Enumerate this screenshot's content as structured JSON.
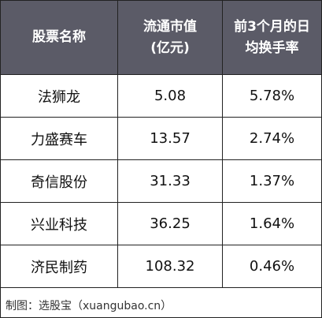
{
  "table": {
    "header": [
      [
        "股票名称"
      ],
      [
        "流通市值",
        "(亿元)"
      ],
      [
        "前3个月的日",
        "均换手率"
      ]
    ],
    "rows": [
      [
        "法狮龙",
        "5.08",
        "5.78%"
      ],
      [
        "力盛赛车",
        "13.57",
        "2.74%"
      ],
      [
        "奇信股份",
        "31.33",
        "1.37%"
      ],
      [
        "兴业科技",
        "36.25",
        "1.64%"
      ],
      [
        "济民制药",
        "108.32",
        "0.46%"
      ]
    ]
  },
  "footer": "制图：选股宝（xuangubao.cn）"
}
